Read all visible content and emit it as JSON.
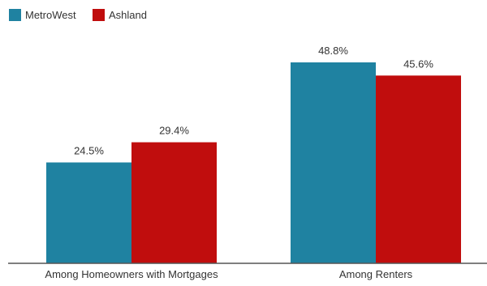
{
  "chart_data": {
    "type": "bar",
    "categories": [
      "Among Homeowners with Mortgages",
      "Among Renters"
    ],
    "series": [
      {
        "name": "MetroWest",
        "color": "#1f82a1",
        "values": [
          24.5,
          48.8
        ],
        "labels": [
          "24.5%",
          "48.8%"
        ]
      },
      {
        "name": "Ashland",
        "color": "#c00d0d",
        "values": [
          29.4,
          45.6
        ],
        "labels": [
          "29.4%",
          "45.6%"
        ]
      }
    ],
    "title": "",
    "xlabel": "",
    "ylabel": "",
    "ylim": [
      0,
      55
    ],
    "grid": false,
    "legend": "top-left"
  }
}
